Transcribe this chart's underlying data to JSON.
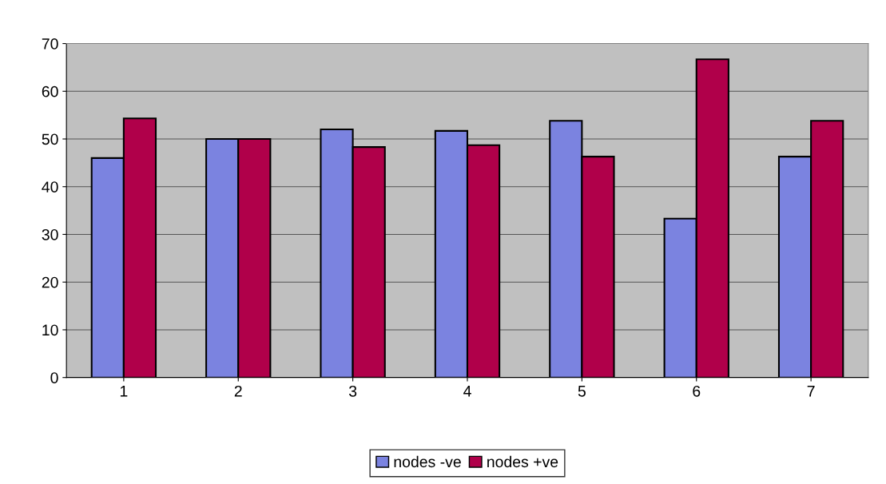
{
  "chart_data": {
    "type": "bar",
    "categories": [
      "1",
      "2",
      "3",
      "4",
      "5",
      "6",
      "7"
    ],
    "series": [
      {
        "name": "nodes -ve",
        "color": "#7b83e0",
        "values": [
          46,
          50,
          52,
          51.7,
          53.8,
          33.3,
          46.3
        ]
      },
      {
        "name": "nodes +ve",
        "color": "#b0004a",
        "values": [
          54.3,
          50,
          48.3,
          48.7,
          46.3,
          66.7,
          53.8
        ]
      }
    ],
    "ylim": [
      0,
      70
    ],
    "yticks": [
      0,
      10,
      20,
      30,
      40,
      50,
      60,
      70
    ],
    "grid": "y",
    "legend": "bottom"
  }
}
